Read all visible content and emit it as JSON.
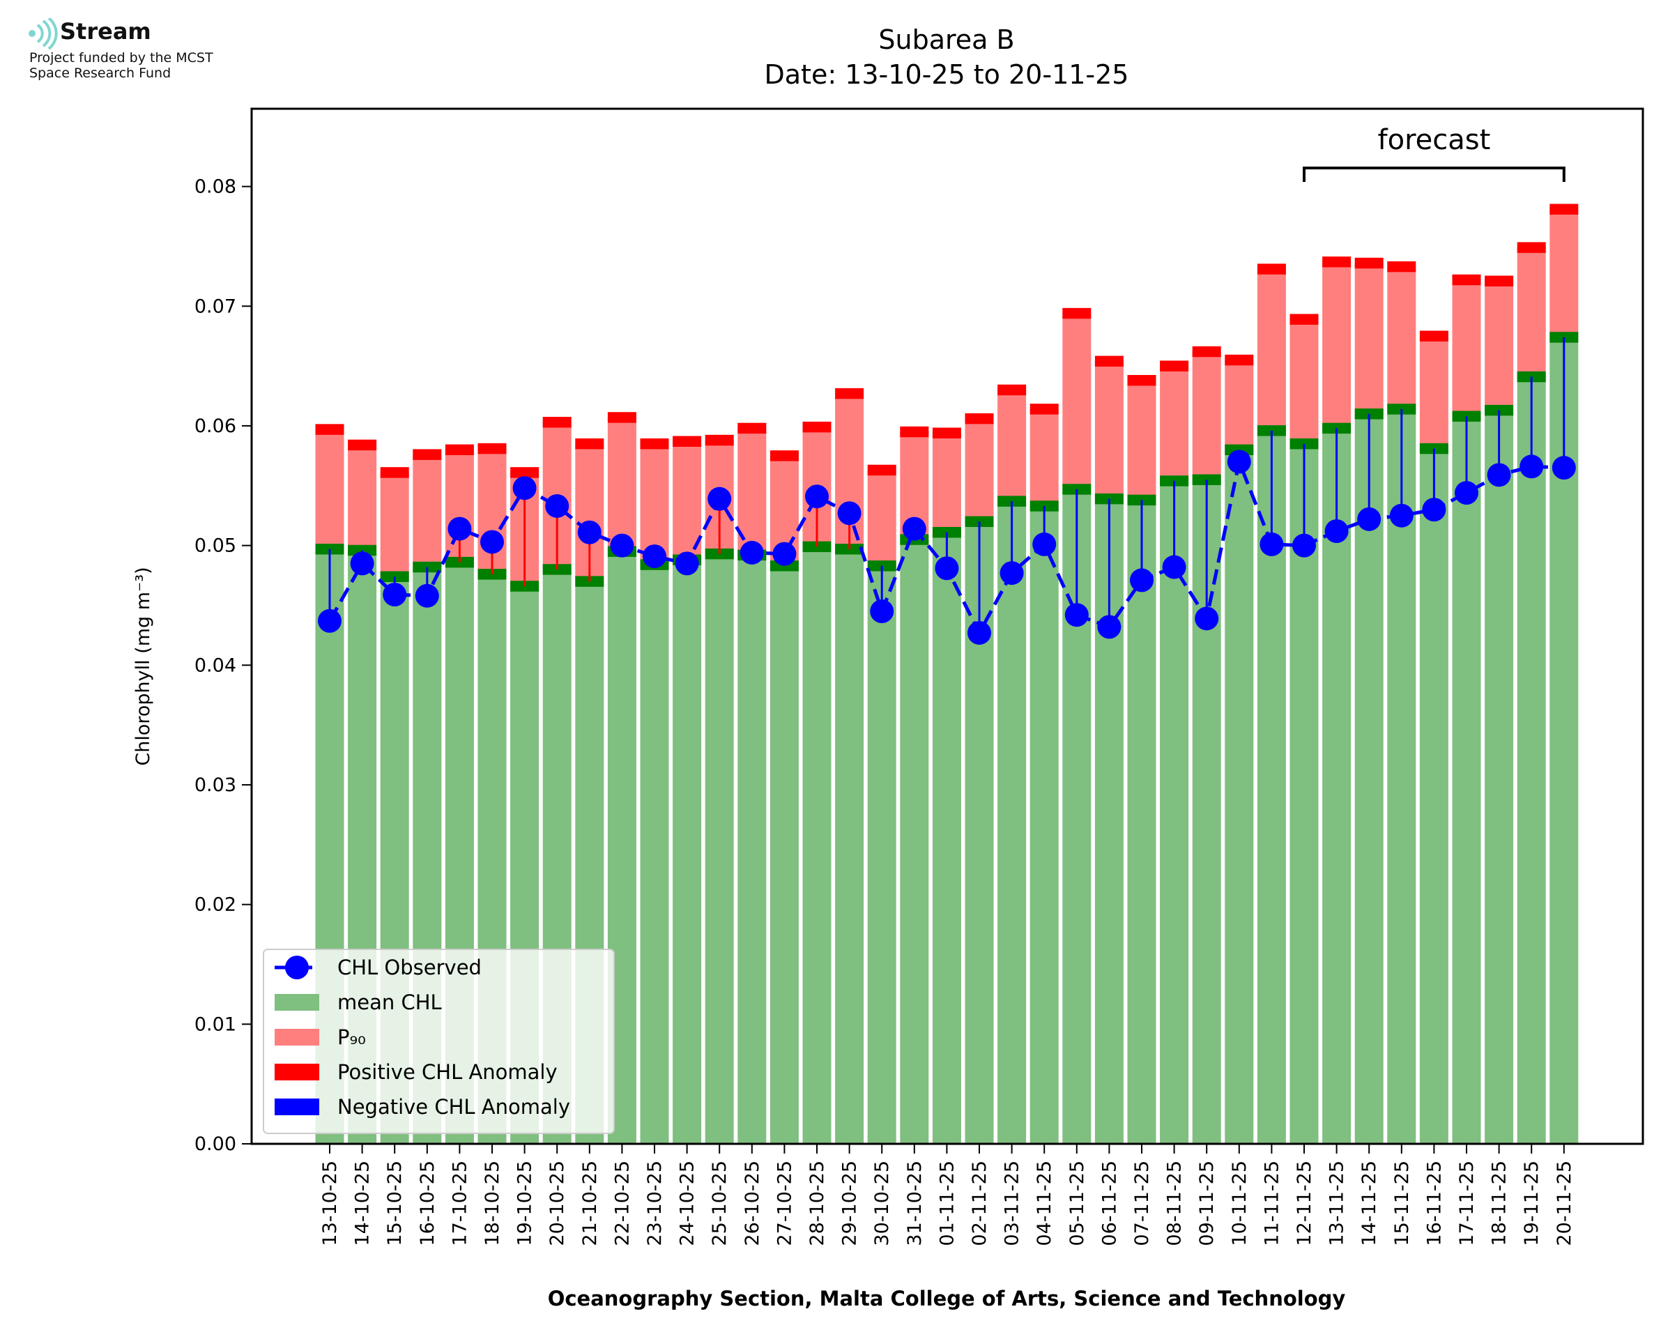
{
  "logo": {
    "brand": "Stream",
    "line1": "Project funded by the MCST",
    "line2": "Space Research Fund",
    "icon": "stream-waves-icon",
    "color": "#7fd6d2"
  },
  "chart_data": {
    "type": "bar",
    "title": "Subarea B",
    "subtitle": "Date: 13-10-25 to 20-11-25",
    "xlabel": "Oceanography Section, Malta College of Arts, Science and Technology",
    "ylabel": "Chlorophyll (mg m⁻³)",
    "ylim": [
      0,
      0.0865
    ],
    "yticks": [
      "0.00",
      "0.01",
      "0.02",
      "0.03",
      "0.04",
      "0.05",
      "0.06",
      "0.07",
      "0.08"
    ],
    "grid": false,
    "legend_position": "lower-left",
    "forecast_label": "forecast",
    "forecast_range": [
      "12-11-25",
      "20-11-25"
    ],
    "categories": [
      "13-10-25",
      "14-10-25",
      "15-10-25",
      "16-10-25",
      "17-10-25",
      "18-10-25",
      "19-10-25",
      "20-10-25",
      "21-10-25",
      "22-10-25",
      "23-10-25",
      "24-10-25",
      "25-10-25",
      "26-10-25",
      "27-10-25",
      "28-10-25",
      "29-10-25",
      "30-10-25",
      "31-10-25",
      "01-11-25",
      "02-11-25",
      "03-11-25",
      "04-11-25",
      "05-11-25",
      "06-11-25",
      "07-11-25",
      "08-11-25",
      "09-11-25",
      "10-11-25",
      "11-11-25",
      "12-11-25",
      "13-11-25",
      "14-11-25",
      "15-11-25",
      "16-11-25",
      "17-11-25",
      "18-11-25",
      "19-11-25",
      "20-11-25"
    ],
    "series": [
      {
        "name": "CHL Observed",
        "color": "#0000ff",
        "style": "dashed line with circle markers",
        "values": [
          0.0437,
          0.0485,
          0.0459,
          0.0458,
          0.0514,
          0.0503,
          0.0548,
          0.0533,
          0.0511,
          0.05,
          0.0491,
          0.0485,
          0.0539,
          0.0494,
          0.0493,
          0.0541,
          0.0527,
          0.0445,
          0.0514,
          0.0481,
          0.0427,
          0.0477,
          0.0501,
          0.0442,
          0.0432,
          0.0471,
          0.0482,
          0.0439,
          0.057,
          0.0501,
          0.05,
          0.0512,
          0.0522,
          0.0525,
          0.053,
          0.0544,
          0.0559,
          0.0566,
          0.0565
        ]
      },
      {
        "name": "mean CHL",
        "color": "#7fbf7f",
        "values": [
          0.0497,
          0.0496,
          0.0474,
          0.0482,
          0.0486,
          0.0476,
          0.0466,
          0.048,
          0.047,
          0.0495,
          0.0484,
          0.0488,
          0.0493,
          0.0492,
          0.0483,
          0.0499,
          0.0497,
          0.0483,
          0.0505,
          0.0511,
          0.052,
          0.0537,
          0.0533,
          0.0547,
          0.0539,
          0.0538,
          0.0554,
          0.0555,
          0.058,
          0.0596,
          0.0585,
          0.0598,
          0.061,
          0.0614,
          0.0581,
          0.0608,
          0.0613,
          0.0641,
          0.0674
        ]
      },
      {
        "name": "P₉₀",
        "color": "#ff7f7f",
        "values": [
          0.0597,
          0.0584,
          0.0561,
          0.0576,
          0.058,
          0.0581,
          0.0561,
          0.0603,
          0.0585,
          0.0607,
          0.0585,
          0.0587,
          0.0588,
          0.0598,
          0.0575,
          0.0599,
          0.0627,
          0.0563,
          0.0595,
          0.0594,
          0.0606,
          0.063,
          0.0614,
          0.0694,
          0.0654,
          0.0638,
          0.065,
          0.0662,
          0.0655,
          0.0731,
          0.0689,
          0.0737,
          0.0736,
          0.0733,
          0.0675,
          0.0722,
          0.0721,
          0.0749,
          0.0781
        ]
      },
      {
        "name": "Positive CHL Anomaly",
        "color": "#ff0000"
      },
      {
        "name": "Negative CHL Anomaly",
        "color": "#0000ff"
      }
    ],
    "band_colors": {
      "mean_band": "#008000",
      "p90_band": "#ff0000"
    }
  }
}
